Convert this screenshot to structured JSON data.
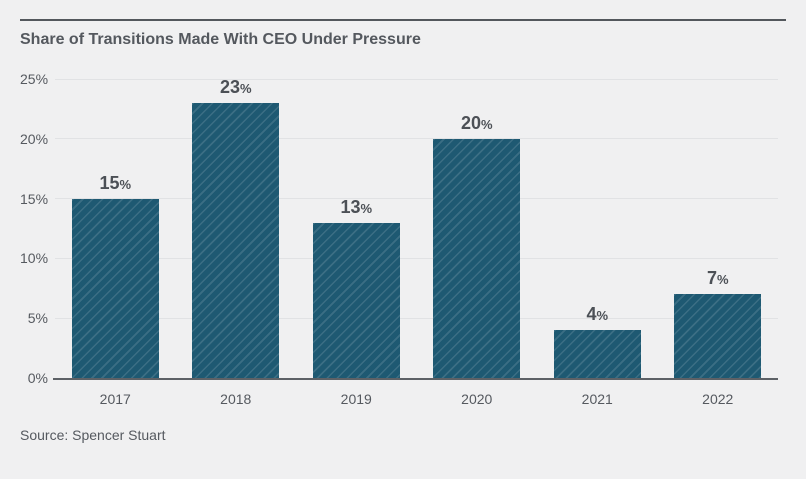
{
  "page": {
    "background": "#f0f0f1"
  },
  "header": {
    "title": "Share of Transitions Made With CEO Under Pressure",
    "rule_color": "#53575c"
  },
  "chart_data": {
    "type": "bar",
    "title": "Share of Transitions Made With CEO Under Pressure",
    "categories": [
      "2017",
      "2018",
      "2019",
      "2020",
      "2021",
      "2022"
    ],
    "values": [
      15,
      23,
      13,
      20,
      4,
      7
    ],
    "data_labels": [
      "15%",
      "23%",
      "13%",
      "20%",
      "4%",
      "7%"
    ],
    "xlabel": "",
    "ylabel": "",
    "ylim": [
      0,
      25
    ],
    "yticks": [
      0,
      5,
      10,
      15,
      20,
      25
    ],
    "ytick_labels": [
      "0%",
      "5%",
      "10%",
      "15%",
      "20%",
      "25%"
    ],
    "grid": true,
    "legend": false,
    "bar_color": "#1e5972",
    "bar_hatch": "diagonal-forward-slash",
    "hatch_color": "rgba(255,255,255,0.13)",
    "gridline_color": "#e1e2e4",
    "baseline_color": "#5d6166",
    "data_label_color": "#4c5056",
    "axis_text_color": "#55595f"
  },
  "footer": {
    "source": "Source: Spencer Stuart"
  }
}
